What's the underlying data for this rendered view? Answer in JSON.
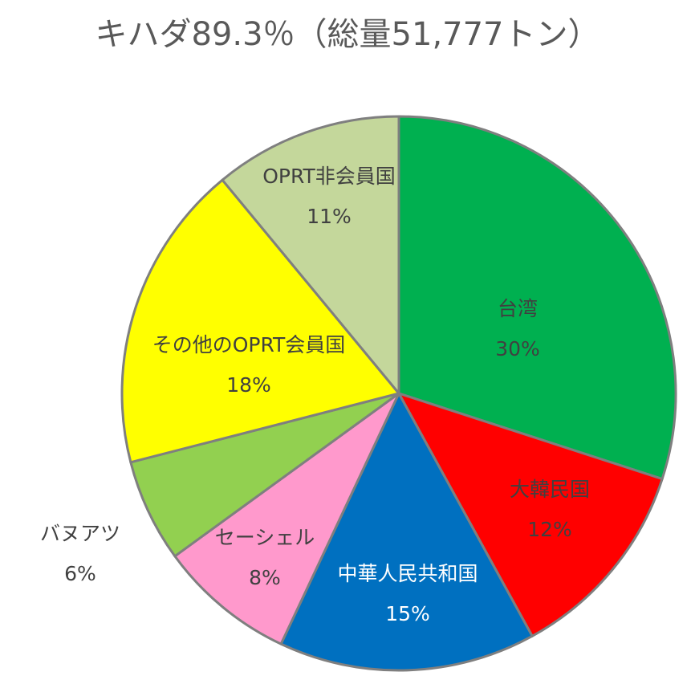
{
  "chart_data": {
    "type": "pie",
    "title": "キハダ89.3％（総量51,777トン）",
    "categories": [
      "台湾",
      "大韓民国",
      "中華人民共和国",
      "セーシェル",
      "バヌアツ",
      "その他のOPRT会員国",
      "OPRT非会員国"
    ],
    "values": [
      30,
      12,
      15,
      8,
      6,
      18,
      11
    ],
    "value_labels": [
      "30%",
      "12%",
      "15%",
      "8%",
      "6%",
      "18%",
      "11%"
    ],
    "colors": [
      "#00b050",
      "#ff0000",
      "#0070c0",
      "#ff99cc",
      "#92d050",
      "#ffff00",
      "#c4d79b"
    ]
  }
}
